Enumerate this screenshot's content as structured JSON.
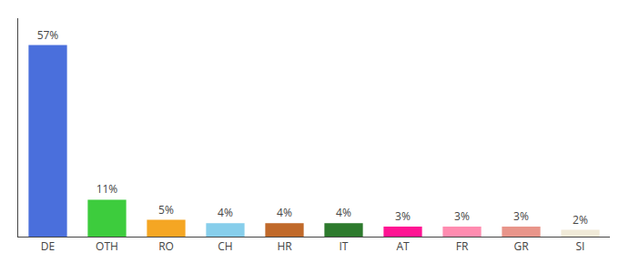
{
  "chart_data": {
    "type": "bar",
    "categories": [
      "DE",
      "OTH",
      "RO",
      "CH",
      "HR",
      "IT",
      "AT",
      "FR",
      "GR",
      "SI"
    ],
    "values": [
      57,
      11,
      5,
      4,
      4,
      4,
      3,
      3,
      3,
      2
    ],
    "value_labels": [
      "57%",
      "11%",
      "5%",
      "4%",
      "4%",
      "4%",
      "3%",
      "3%",
      "3%",
      "2%"
    ],
    "data_labels": true,
    "colors": [
      "#4a6fdc",
      "#3dcc3d",
      "#f5a623",
      "#87ceeb",
      "#c0692a",
      "#2d7a2d",
      "#ff1493",
      "#ff8cb0",
      "#e8958a",
      "#f0ead8"
    ],
    "ylim": [
      0,
      65
    ],
    "grid": false,
    "tick_labels": "x"
  }
}
